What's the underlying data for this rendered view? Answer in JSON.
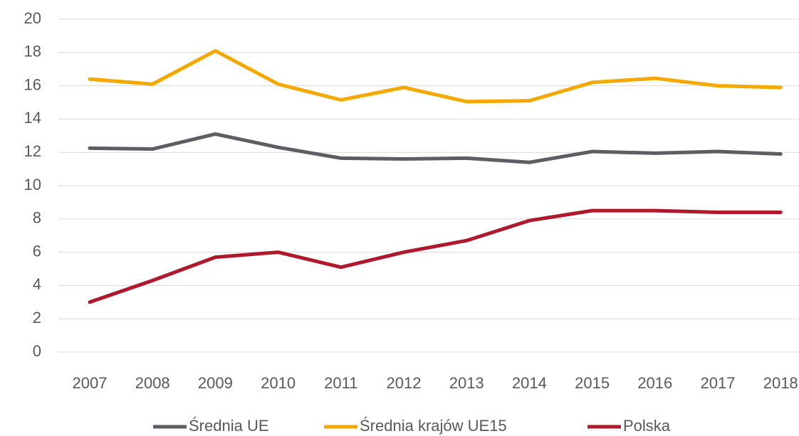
{
  "chart_data": {
    "type": "line",
    "categories": [
      "2007",
      "2008",
      "2009",
      "2010",
      "2011",
      "2012",
      "2013",
      "2014",
      "2015",
      "2016",
      "2017",
      "2018"
    ],
    "series": [
      {
        "name": "Średnia UE",
        "color": "#5b5f63",
        "values": [
          12.25,
          12.2,
          13.1,
          12.3,
          11.65,
          11.6,
          11.65,
          11.4,
          12.05,
          11.95,
          12.05,
          11.9
        ]
      },
      {
        "name": "Średnia krajów UE15",
        "color": "#f5a800",
        "values": [
          16.4,
          16.1,
          18.1,
          16.1,
          15.15,
          15.9,
          15.05,
          15.1,
          16.2,
          16.45,
          16.0,
          15.9
        ]
      },
      {
        "name": "Polska",
        "color": "#b0182b",
        "values": [
          3.0,
          4.3,
          5.7,
          6.0,
          5.1,
          6.0,
          6.7,
          7.9,
          8.5,
          8.5,
          8.4,
          8.4
        ]
      }
    ],
    "ylim": [
      0,
      20
    ],
    "yticks": [
      0,
      2,
      4,
      6,
      8,
      10,
      12,
      14,
      16,
      18,
      20
    ],
    "grid": true,
    "legend": "bottom"
  }
}
